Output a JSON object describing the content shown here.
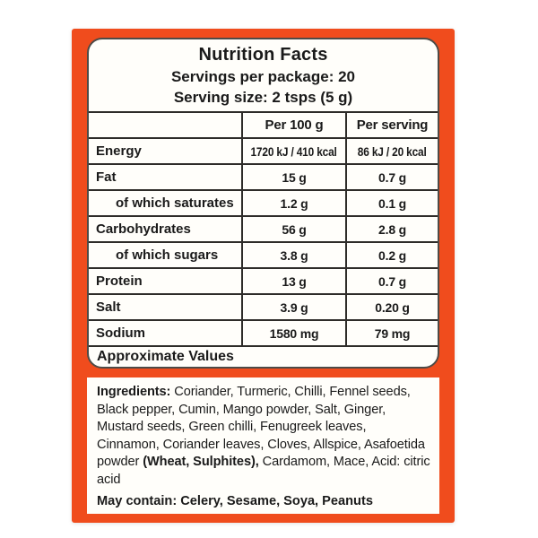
{
  "package": {
    "brand_color": "#F04C1D"
  },
  "nutrition": {
    "title": "Nutrition Facts",
    "servings_per_package": "Servings per package: 20",
    "serving_size": "Serving size: 2 tsps (5 g)",
    "table": {
      "columns": [
        "",
        "Per 100 g",
        "Per serving"
      ],
      "rows": [
        {
          "label": "Energy",
          "per_100g": "1720 kJ / 410 kcal",
          "per_serving": "86 kJ / 20 kcal",
          "indent": false
        },
        {
          "label": "Fat",
          "per_100g": "15 g",
          "per_serving": "0.7 g",
          "indent": false
        },
        {
          "label": "of which saturates",
          "per_100g": "1.2 g",
          "per_serving": "0.1 g",
          "indent": true
        },
        {
          "label": "Carbohydrates",
          "per_100g": "56 g",
          "per_serving": "2.8 g",
          "indent": false
        },
        {
          "label": "of which sugars",
          "per_100g": "3.8 g",
          "per_serving": "0.2 g",
          "indent": true
        },
        {
          "label": "Protein",
          "per_100g": "13 g",
          "per_serving": "0.7 g",
          "indent": false
        },
        {
          "label": "Salt",
          "per_100g": "3.9 g",
          "per_serving": "0.20 g",
          "indent": false
        },
        {
          "label": "Sodium",
          "per_100g": "1580 mg",
          "per_serving": "79 mg",
          "indent": false
        }
      ],
      "footer": "Approximate Values"
    }
  },
  "ingredients": {
    "segments": [
      {
        "text": "Ingredients:",
        "bold": true
      },
      {
        "text": " Coriander, Turmeric, Chilli, Fennel seeds, Black pepper, Cumin, Mango powder, Salt, Ginger, Mustard seeds, Green chilli, Fenugreek leaves, Cinnamon, Coriander leaves, Cloves, Allspice, Asafoetida powder ",
        "bold": false
      },
      {
        "text": "(Wheat, Sulphites),",
        "bold": true
      },
      {
        "text": " Cardamom, Mace, Acid: citric acid",
        "bold": false
      }
    ],
    "may_contain": "May contain: Celery, Sesame, Soya, Peanuts"
  }
}
